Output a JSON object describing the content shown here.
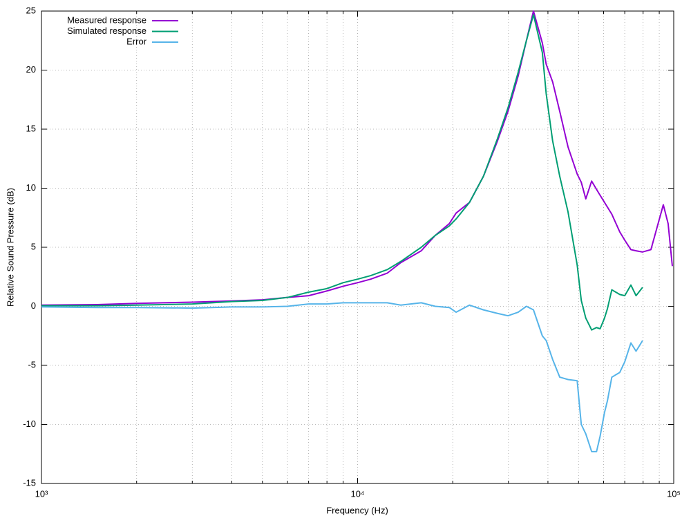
{
  "chart_data": {
    "type": "line",
    "xlabel": "Frequency (Hz)",
    "ylabel": "Relative Sound Pressure (dB)",
    "xscale": "log",
    "grid": true,
    "legend": "top-left",
    "xlim": [
      1000,
      100000
    ],
    "ylim": [
      -15,
      25
    ],
    "xticks": [
      {
        "value": 1000,
        "label": "10³"
      },
      {
        "value": 10000,
        "label": "10⁴"
      },
      {
        "value": 100000,
        "label": "10⁵"
      }
    ],
    "xminorticks": [
      2000,
      3000,
      4000,
      5000,
      6000,
      7000,
      8000,
      9000,
      20000,
      30000,
      40000,
      50000,
      60000,
      70000,
      80000,
      90000
    ],
    "yticks": [
      -15,
      -10,
      -5,
      0,
      5,
      10,
      15,
      20,
      25
    ],
    "x": [
      1000,
      1500,
      2000,
      3000,
      4000,
      5000,
      6000,
      7000,
      8000,
      9000,
      10000,
      11000,
      12400,
      13700,
      15900,
      17600,
      19500,
      20500,
      22600,
      25000,
      27700,
      29900,
      32200,
      34200,
      36000,
      38400,
      39500,
      41400,
      43600,
      46300,
      49500,
      51000,
      52700,
      55000,
      57000,
      58500,
      60400,
      61700,
      63700,
      67500,
      70000,
      73200,
      76000,
      79700,
      84700,
      92700,
      96000,
      99000
    ],
    "series": [
      {
        "name": "Measured response",
        "color": "#9400d3",
        "values": [
          0.1,
          0.15,
          0.25,
          0.35,
          0.45,
          0.55,
          0.75,
          0.9,
          1.3,
          1.7,
          2.0,
          2.3,
          2.8,
          3.7,
          4.7,
          6.0,
          7.0,
          7.9,
          8.8,
          11,
          14,
          16.5,
          19.5,
          22.5,
          25,
          22.3,
          20.5,
          19,
          16.5,
          13.5,
          11.2,
          10.5,
          9.1,
          10.6,
          9.9,
          9.4,
          8.8,
          8.4,
          7.8,
          6.3,
          5.6,
          4.8,
          4.7,
          4.6,
          4.8,
          8.6,
          7.0,
          3.4
        ]
      },
      {
        "name": "Simulated response",
        "color": "#009e73",
        "values": [
          0.05,
          0.05,
          0.1,
          0.2,
          0.4,
          0.5,
          0.75,
          1.2,
          1.5,
          2.0,
          2.3,
          2.6,
          3.1,
          3.8,
          5.0,
          6.0,
          6.8,
          7.4,
          8.8,
          11,
          14.2,
          16.8,
          19.8,
          22.5,
          24.7,
          21.5,
          18,
          14,
          11,
          8,
          3.5,
          0.5,
          -1,
          -2,
          -1.8,
          -1.9,
          -1,
          -0.2,
          1.4,
          1.0,
          0.9,
          1.8,
          0.9,
          1.6,
          null,
          null,
          null,
          null
        ]
      },
      {
        "name": "Error",
        "color": "#56b4e9",
        "values": [
          -0.05,
          -0.1,
          -0.1,
          -0.15,
          -0.05,
          -0.05,
          0,
          0.2,
          0.2,
          0.3,
          0.3,
          0.3,
          0.3,
          0.1,
          0.3,
          0,
          -0.1,
          -0.5,
          0.1,
          -0.3,
          -0.6,
          -0.8,
          -0.5,
          0,
          -0.3,
          -2.5,
          -2.9,
          -4.5,
          -6,
          -6.2,
          -6.3,
          -10,
          -10.8,
          -12.3,
          -12.3,
          -11,
          -9,
          -8,
          -6,
          -5.6,
          -4.7,
          -3.1,
          -3.8,
          -2.9,
          null,
          null,
          null,
          null
        ]
      }
    ]
  }
}
